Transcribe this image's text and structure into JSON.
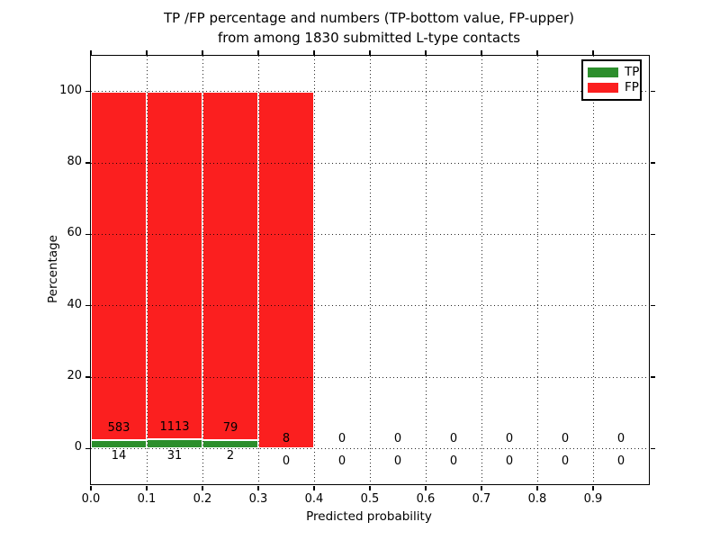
{
  "figure": {
    "title_line1": "TP /FP percentage and numbers (TP-bottom value, FP-upper)",
    "title_line2": "from among 1830 submitted L-type contacts"
  },
  "chart_data": {
    "type": "bar",
    "stacked": true,
    "title": "TP /FP percentage and numbers (TP-bottom value, FP-upper)\nfrom among 1830 submitted L-type contacts",
    "xlabel": "Predicted probability",
    "ylabel": "Percentage",
    "total_contacts": 1830,
    "bin_starts": [
      0.0,
      0.1,
      0.2,
      0.3,
      0.4,
      0.5,
      0.6,
      0.7,
      0.8,
      0.9
    ],
    "bin_width": 0.1,
    "x_tick_labels": [
      "0.0",
      "0.1",
      "0.2",
      "0.3",
      "0.4",
      "0.5",
      "0.6",
      "0.7",
      "0.8",
      "0.9"
    ],
    "y_tick_values": [
      0,
      20,
      40,
      60,
      80,
      100
    ],
    "y_tick_labels": [
      "0",
      "20",
      "40",
      "60",
      "80",
      "100"
    ],
    "xlim": [
      0.0,
      1.0
    ],
    "ylim": [
      -10,
      110
    ],
    "grid": "dotted, both axes, drawn over bars",
    "series": [
      {
        "name": "TP",
        "color": "#2c8e2c",
        "counts": [
          14,
          31,
          2,
          0,
          0,
          0,
          0,
          0,
          0,
          0
        ],
        "percent": [
          2.35,
          2.71,
          2.47,
          0,
          0,
          0,
          0,
          0,
          0,
          0
        ]
      },
      {
        "name": "FP",
        "color": "#fb1f1f",
        "counts": [
          583,
          1113,
          79,
          8,
          0,
          0,
          0,
          0,
          0,
          0
        ],
        "percent": [
          97.65,
          97.29,
          97.53,
          100,
          0,
          0,
          0,
          0,
          0,
          0
        ]
      }
    ],
    "annotations": "FP count printed above each bar's TP/FP boundary, TP count printed below the zero line",
    "legend": {
      "position": "upper right",
      "entries": [
        "TP",
        "FP"
      ]
    }
  },
  "colors": {
    "tp_green": "#2c8e2c",
    "fp_red": "#fb1f1f",
    "spine": "#000000",
    "background": "#ffffff",
    "text": "#000000"
  }
}
